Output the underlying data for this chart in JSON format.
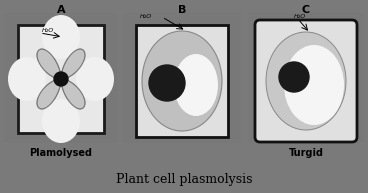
{
  "bg_outer": "#7a7a7a",
  "bg_inner_A": "#d5d5d5",
  "bg_inner_BC": "#d8d8d8",
  "cell_wall_color": "#111111",
  "cell_wall_fill": "#e0e0e0",
  "proto_gray": "#b8b8b8",
  "vacuole_white": "#f2f2f2",
  "nucleus_color": "#1a1a1a",
  "water_gap_white": "#ebebeb",
  "title": "Plant cell plasmolysis",
  "label_A": "A",
  "label_B": "B",
  "label_C": "C",
  "caption_A": "Plamolysed",
  "caption_C": "Turgid",
  "water_label": "H₂O"
}
